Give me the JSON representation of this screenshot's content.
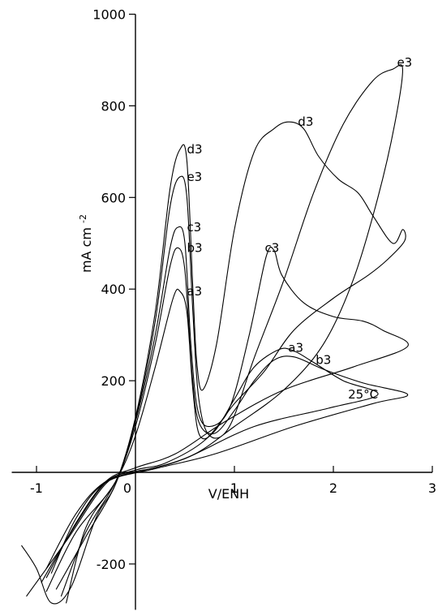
{
  "chart_data": {
    "type": "line",
    "xlabel": "V/ENH",
    "ylabel": "mA cm",
    "ylabel_sup": "-2",
    "xlim": [
      -1.25,
      3.0
    ],
    "ylim": [
      -300,
      1000
    ],
    "x_ticks": [
      -1,
      0,
      1,
      2,
      3
    ],
    "y_ticks": [
      -200,
      0,
      200,
      400,
      600,
      800,
      1000
    ],
    "x_tick_labels": [
      "-1",
      "0",
      "1",
      "2",
      "3"
    ],
    "y_tick_labels": [
      "-200",
      "200",
      "400",
      "600",
      "800",
      "1000"
    ],
    "annotation": "25°C",
    "annotation_at": [
      2.3,
      170
    ],
    "grid": false,
    "series": [
      {
        "name": "a3",
        "label_at": [
          1.62,
          272
        ],
        "points": [
          [
            -0.7,
            -285
          ],
          [
            -0.5,
            -120
          ],
          [
            -0.2,
            -20
          ],
          [
            0,
            80
          ],
          [
            0.2,
            230
          ],
          [
            0.38,
            380
          ],
          [
            0.45,
            395
          ],
          [
            0.52,
            350
          ],
          [
            0.58,
            180
          ],
          [
            0.65,
            80
          ],
          [
            0.8,
            90
          ],
          [
            1.0,
            160
          ],
          [
            1.2,
            230
          ],
          [
            1.45,
            268
          ],
          [
            1.6,
            265
          ],
          [
            1.8,
            240
          ],
          [
            2.1,
            200
          ],
          [
            2.45,
            170
          ],
          [
            1.95,
            140
          ],
          [
            1.2,
            100
          ],
          [
            0.5,
            30
          ],
          [
            0.1,
            5
          ],
          [
            -0.3,
            -20
          ],
          [
            -0.6,
            -90
          ],
          [
            -0.9,
            -210
          ]
        ]
      },
      {
        "name": "b3",
        "label_at": [
          1.9,
          245
        ],
        "points": [
          [
            -0.75,
            -270
          ],
          [
            -0.5,
            -130
          ],
          [
            -0.2,
            -20
          ],
          [
            0,
            100
          ],
          [
            0.2,
            280
          ],
          [
            0.35,
            450
          ],
          [
            0.43,
            490
          ],
          [
            0.5,
            440
          ],
          [
            0.57,
            220
          ],
          [
            0.64,
            110
          ],
          [
            0.8,
            85
          ],
          [
            1.0,
            135
          ],
          [
            1.2,
            200
          ],
          [
            1.4,
            245
          ],
          [
            1.6,
            252
          ],
          [
            1.9,
            225
          ],
          [
            2.3,
            195
          ],
          [
            2.75,
            170
          ],
          [
            2.4,
            150
          ],
          [
            1.6,
            100
          ],
          [
            0.8,
            40
          ],
          [
            0.2,
            8
          ],
          [
            -0.3,
            -22
          ],
          [
            -0.6,
            -100
          ],
          [
            -0.85,
            -220
          ]
        ]
      },
      {
        "name": "c3",
        "label_at": [
          1.38,
          490
        ],
        "points": [
          [
            -0.8,
            -255
          ],
          [
            -0.5,
            -140
          ],
          [
            -0.2,
            -25
          ],
          [
            0,
            110
          ],
          [
            0.2,
            300
          ],
          [
            0.35,
            490
          ],
          [
            0.43,
            535
          ],
          [
            0.5,
            500
          ],
          [
            0.56,
            280
          ],
          [
            0.63,
            135
          ],
          [
            0.75,
            100
          ],
          [
            0.95,
            140
          ],
          [
            1.15,
            300
          ],
          [
            1.32,
            470
          ],
          [
            1.4,
            485
          ],
          [
            1.48,
            430
          ],
          [
            1.7,
            370
          ],
          [
            2.0,
            340
          ],
          [
            2.3,
            330
          ],
          [
            2.5,
            310
          ],
          [
            2.75,
            275
          ],
          [
            2.2,
            230
          ],
          [
            1.5,
            180
          ],
          [
            0.9,
            110
          ],
          [
            0.4,
            40
          ],
          [
            0,
            10
          ],
          [
            -0.3,
            -20
          ],
          [
            -0.6,
            -110
          ],
          [
            -0.9,
            -230
          ]
        ]
      },
      {
        "name": "d3",
        "label_at": [
          1.72,
          765
        ],
        "points": [
          [
            -1.15,
            -160
          ],
          [
            -1.0,
            -210
          ],
          [
            -0.85,
            -285
          ],
          [
            -0.65,
            -250
          ],
          [
            -0.4,
            -100
          ],
          [
            -0.2,
            -25
          ],
          [
            0,
            120
          ],
          [
            0.2,
            350
          ],
          [
            0.35,
            620
          ],
          [
            0.45,
            705
          ],
          [
            0.52,
            680
          ],
          [
            0.58,
            400
          ],
          [
            0.62,
            240
          ],
          [
            0.68,
            180
          ],
          [
            0.82,
            280
          ],
          [
            1.0,
            530
          ],
          [
            1.2,
            700
          ],
          [
            1.4,
            750
          ],
          [
            1.55,
            765
          ],
          [
            1.7,
            750
          ],
          [
            1.85,
            690
          ],
          [
            2.05,
            640
          ],
          [
            2.25,
            610
          ],
          [
            2.4,
            560
          ],
          [
            2.6,
            500
          ],
          [
            2.7,
            530
          ],
          [
            2.72,
            505
          ],
          [
            2.55,
            465
          ],
          [
            2.35,
            430
          ],
          [
            2.0,
            380
          ],
          [
            1.6,
            310
          ],
          [
            1.3,
            220
          ],
          [
            1.0,
            150
          ],
          [
            0.7,
            70
          ],
          [
            0.3,
            20
          ],
          [
            0,
            5
          ],
          [
            -0.3,
            -25
          ],
          [
            -0.7,
            -150
          ],
          [
            -1.1,
            -270
          ]
        ]
      },
      {
        "name": "e3",
        "label_at": [
          2.72,
          895
        ],
        "points": [
          [
            -0.9,
            -260
          ],
          [
            -0.6,
            -130
          ],
          [
            -0.2,
            -20
          ],
          [
            0,
            115
          ],
          [
            0.2,
            330
          ],
          [
            0.35,
            580
          ],
          [
            0.45,
            645
          ],
          [
            0.52,
            600
          ],
          [
            0.58,
            350
          ],
          [
            0.64,
            160
          ],
          [
            0.75,
            80
          ],
          [
            0.95,
            100
          ],
          [
            1.2,
            250
          ],
          [
            1.5,
            420
          ],
          [
            1.8,
            610
          ],
          [
            2.1,
            760
          ],
          [
            2.4,
            855
          ],
          [
            2.6,
            880
          ],
          [
            2.7,
            880
          ],
          [
            2.62,
            760
          ],
          [
            2.45,
            600
          ],
          [
            2.2,
            420
          ],
          [
            1.9,
            280
          ],
          [
            1.5,
            180
          ],
          [
            1.0,
            100
          ],
          [
            0.6,
            40
          ],
          [
            0.2,
            10
          ],
          [
            0,
            2
          ],
          [
            -0.3,
            -22
          ],
          [
            -0.65,
            -130
          ],
          [
            -0.95,
            -240
          ]
        ]
      }
    ]
  }
}
